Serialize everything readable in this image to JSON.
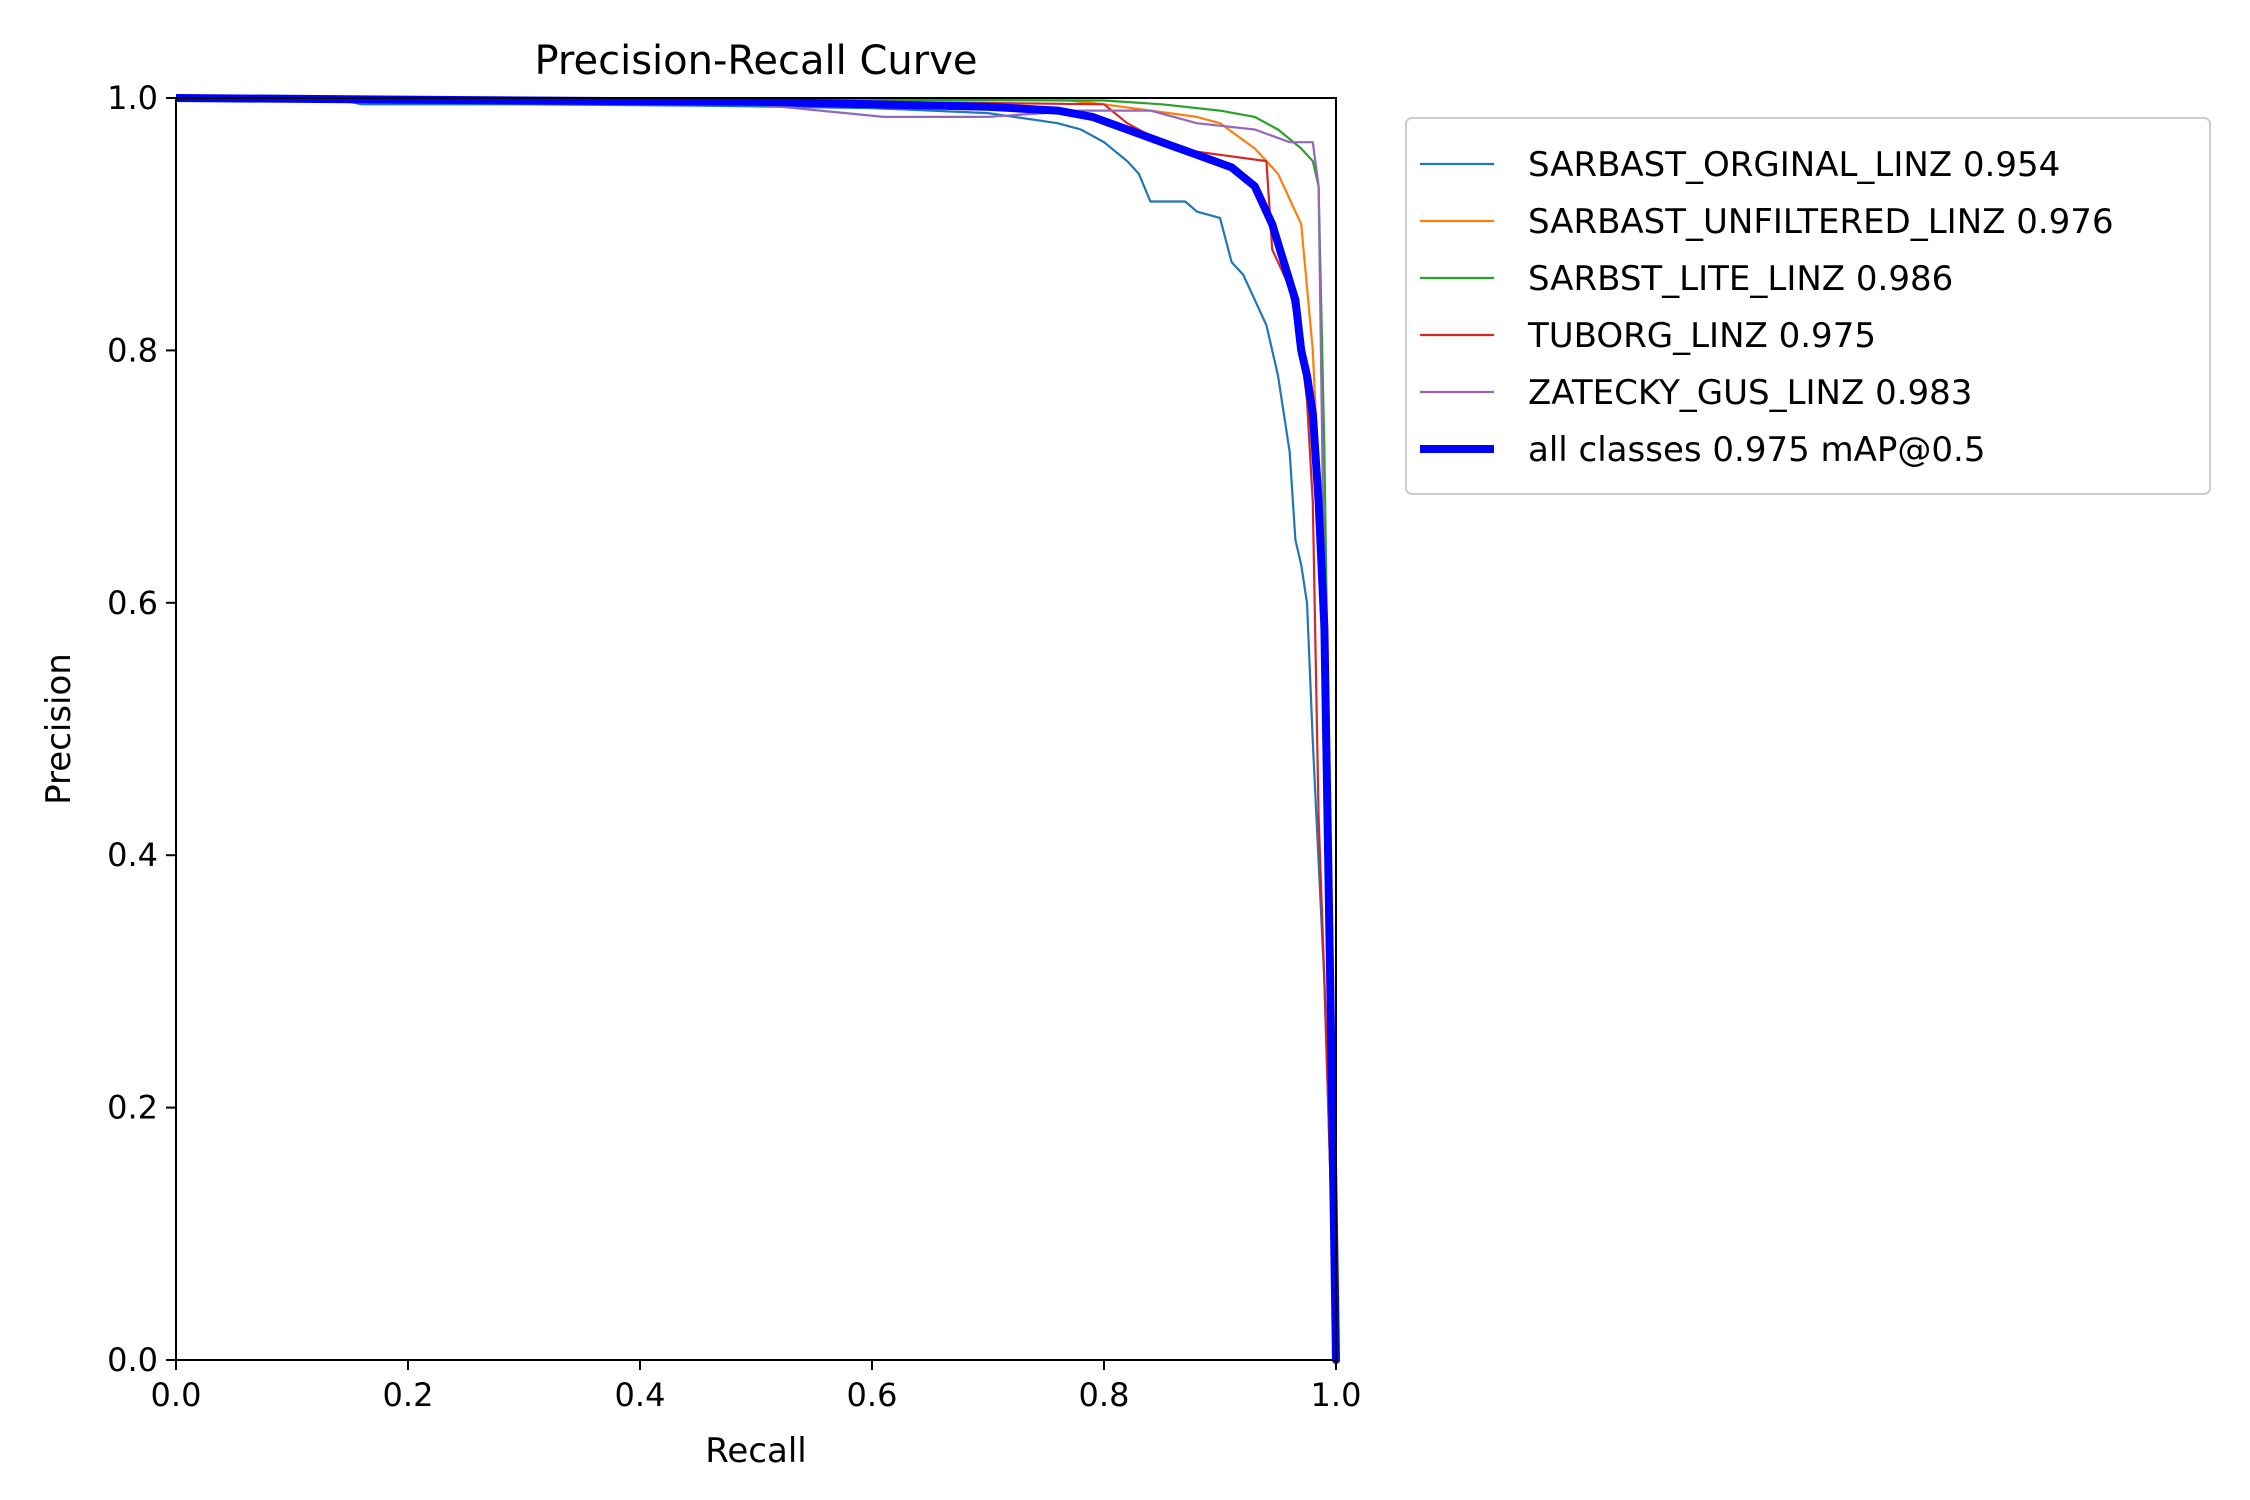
{
  "chart_data": {
    "type": "line",
    "title": "Precision-Recall Curve",
    "xlabel": "Recall",
    "ylabel": "Precision",
    "xlim": [
      0,
      1
    ],
    "ylim": [
      0,
      1
    ],
    "xticks": [
      "0.0",
      "0.2",
      "0.4",
      "0.6",
      "0.8",
      "1.0"
    ],
    "yticks": [
      "0.0",
      "0.2",
      "0.4",
      "0.6",
      "0.8",
      "1.0"
    ],
    "grid": false,
    "legend_position": "outside-right-top",
    "series": [
      {
        "name": "SARBAST_ORGINAL_LINZ 0.954",
        "color": "#1f77b4",
        "points": [
          [
            0,
            1.0
          ],
          [
            0.15,
            0.997
          ],
          [
            0.16,
            0.995
          ],
          [
            0.3,
            0.995
          ],
          [
            0.45,
            0.994
          ],
          [
            0.6,
            0.992
          ],
          [
            0.7,
            0.988
          ],
          [
            0.76,
            0.98
          ],
          [
            0.78,
            0.975
          ],
          [
            0.8,
            0.965
          ],
          [
            0.82,
            0.95
          ],
          [
            0.83,
            0.94
          ],
          [
            0.84,
            0.918
          ],
          [
            0.87,
            0.918
          ],
          [
            0.88,
            0.91
          ],
          [
            0.9,
            0.905
          ],
          [
            0.91,
            0.87
          ],
          [
            0.92,
            0.86
          ],
          [
            0.93,
            0.84
          ],
          [
            0.94,
            0.82
          ],
          [
            0.95,
            0.78
          ],
          [
            0.955,
            0.75
          ],
          [
            0.96,
            0.72
          ],
          [
            0.965,
            0.65
          ],
          [
            0.97,
            0.63
          ],
          [
            0.975,
            0.6
          ],
          [
            0.98,
            0.49
          ],
          [
            0.99,
            0.3
          ],
          [
            1.0,
            0.0
          ]
        ]
      },
      {
        "name": "SARBAST_UNFILTERED_LINZ 0.976",
        "color": "#ff7f0e",
        "points": [
          [
            0,
            1.0
          ],
          [
            0.5,
            0.999
          ],
          [
            0.77,
            0.998
          ],
          [
            0.8,
            0.995
          ],
          [
            0.84,
            0.99
          ],
          [
            0.88,
            0.985
          ],
          [
            0.9,
            0.98
          ],
          [
            0.93,
            0.96
          ],
          [
            0.95,
            0.94
          ],
          [
            0.96,
            0.92
          ],
          [
            0.97,
            0.9
          ],
          [
            0.975,
            0.85
          ],
          [
            0.98,
            0.8
          ],
          [
            0.985,
            0.7
          ],
          [
            0.99,
            0.66
          ],
          [
            0.995,
            0.3
          ],
          [
            1.0,
            0.0
          ]
        ]
      },
      {
        "name": "SARBST_LITE_LINZ 0.986",
        "color": "#2ca02c",
        "points": [
          [
            0,
            1.0
          ],
          [
            0.5,
            0.999
          ],
          [
            0.8,
            0.998
          ],
          [
            0.85,
            0.995
          ],
          [
            0.9,
            0.99
          ],
          [
            0.93,
            0.985
          ],
          [
            0.95,
            0.975
          ],
          [
            0.97,
            0.96
          ],
          [
            0.98,
            0.95
          ],
          [
            0.985,
            0.93
          ],
          [
            0.99,
            0.72
          ],
          [
            0.995,
            0.4
          ],
          [
            1.0,
            0.0
          ]
        ]
      },
      {
        "name": "TUBORG_LINZ 0.975",
        "color": "#d62728",
        "points": [
          [
            0,
            1.0
          ],
          [
            0.5,
            0.998
          ],
          [
            0.7,
            0.996
          ],
          [
            0.8,
            0.995
          ],
          [
            0.82,
            0.98
          ],
          [
            0.86,
            0.96
          ],
          [
            0.9,
            0.955
          ],
          [
            0.94,
            0.95
          ],
          [
            0.945,
            0.88
          ],
          [
            0.955,
            0.86
          ],
          [
            0.96,
            0.85
          ],
          [
            0.97,
            0.8
          ],
          [
            0.975,
            0.76
          ],
          [
            0.98,
            0.68
          ],
          [
            0.985,
            0.43
          ],
          [
            0.99,
            0.3
          ],
          [
            1.0,
            0.0
          ]
        ]
      },
      {
        "name": "ZATECKY_GUS_LINZ 0.983",
        "color": "#9467bd",
        "points": [
          [
            0,
            1.0
          ],
          [
            0.5,
            0.995
          ],
          [
            0.61,
            0.985
          ],
          [
            0.7,
            0.985
          ],
          [
            0.78,
            0.99
          ],
          [
            0.84,
            0.99
          ],
          [
            0.88,
            0.98
          ],
          [
            0.93,
            0.975
          ],
          [
            0.96,
            0.965
          ],
          [
            0.98,
            0.965
          ],
          [
            0.985,
            0.93
          ],
          [
            0.99,
            0.6
          ],
          [
            0.995,
            0.3
          ],
          [
            1.0,
            0.0
          ]
        ]
      },
      {
        "name": "all classes 0.975 mAP@0.5",
        "color": "#0000ff",
        "points": [
          [
            0,
            1.0
          ],
          [
            0.3,
            0.998
          ],
          [
            0.5,
            0.997
          ],
          [
            0.6,
            0.995
          ],
          [
            0.7,
            0.993
          ],
          [
            0.76,
            0.99
          ],
          [
            0.79,
            0.985
          ],
          [
            0.82,
            0.975
          ],
          [
            0.85,
            0.965
          ],
          [
            0.88,
            0.955
          ],
          [
            0.91,
            0.945
          ],
          [
            0.93,
            0.93
          ],
          [
            0.945,
            0.9
          ],
          [
            0.955,
            0.87
          ],
          [
            0.965,
            0.84
          ],
          [
            0.97,
            0.8
          ],
          [
            0.975,
            0.78
          ],
          [
            0.98,
            0.75
          ],
          [
            0.985,
            0.68
          ],
          [
            0.99,
            0.58
          ],
          [
            0.995,
            0.3
          ],
          [
            1.0,
            0.0
          ]
        ]
      }
    ]
  }
}
